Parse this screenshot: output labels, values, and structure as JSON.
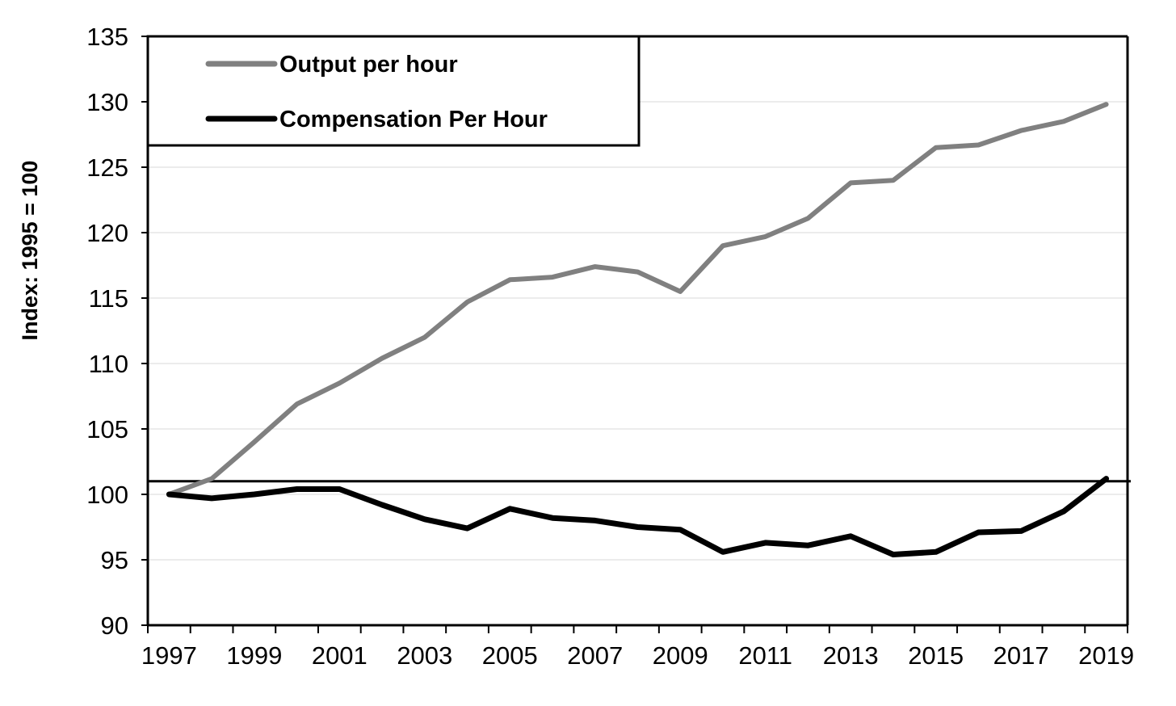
{
  "chart_data": {
    "type": "line",
    "title": "",
    "xlabel": "",
    "ylabel": "Index: 1995 = 100",
    "ylim": [
      90,
      135
    ],
    "yticks": [
      "90",
      "95",
      "100",
      "105",
      "110",
      "115",
      "120",
      "125",
      "130",
      "135"
    ],
    "xticks": [
      "1997",
      "1999",
      "2001",
      "2003",
      "2005",
      "2007",
      "2009",
      "2011",
      "2013",
      "2015",
      "2017",
      "2019"
    ],
    "grid": true,
    "legend_position": "top-left",
    "reference_line": 101,
    "x": [
      1997,
      1998,
      1999,
      2000,
      2001,
      2002,
      2003,
      2004,
      2005,
      2006,
      2007,
      2008,
      2009,
      2010,
      2011,
      2012,
      2013,
      2014,
      2015,
      2016,
      2017,
      2018,
      2019
    ],
    "series": [
      {
        "name": "Output per hour",
        "color": "#808080",
        "values": [
          100.0,
          101.2,
          104.0,
          106.9,
          108.5,
          110.4,
          112.0,
          114.7,
          116.4,
          116.6,
          117.4,
          117.0,
          115.5,
          119.0,
          119.7,
          121.1,
          123.8,
          124.0,
          126.5,
          126.7,
          127.8,
          128.5,
          129.8
        ]
      },
      {
        "name": "Compensation Per Hour",
        "color": "#000000",
        "values": [
          100.0,
          99.7,
          100.0,
          100.4,
          100.4,
          99.2,
          98.1,
          97.4,
          98.9,
          98.2,
          98.0,
          97.5,
          97.3,
          95.6,
          96.3,
          96.1,
          96.8,
          95.4,
          95.6,
          97.1,
          97.2,
          98.7,
          101.2
        ]
      }
    ]
  }
}
